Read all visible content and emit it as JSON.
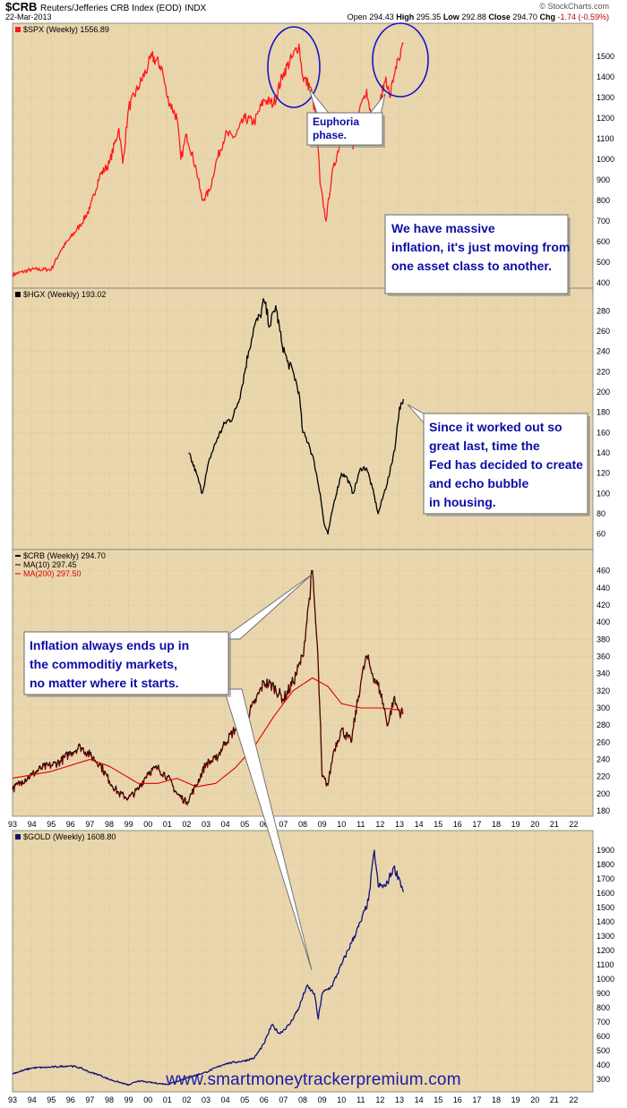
{
  "header": {
    "symbol": "$CRB",
    "index_name": "Reuters/Jefferies CRB Index (EOD)",
    "exchange": "INDX",
    "date": "22-Mar-2013",
    "open_label": "Open",
    "open": "294.43",
    "high_label": "High",
    "high": "295.35",
    "low_label": "Low",
    "low": "292.88",
    "close_label": "Close",
    "close": "294.70",
    "chg_label": "Chg",
    "chg": "-1.74 (-0.59%)",
    "logo": "© StockCharts.com"
  },
  "footer": {
    "url": "www.smartmoneytrackerpremium.com"
  },
  "chart_data": [
    {
      "type": "line",
      "legend": "$SPX (Weekly) 1556.89",
      "color": "#ff1a1a",
      "ylim": [
        400,
        1600
      ],
      "yticks": [
        "400",
        "500",
        "600",
        "700",
        "800",
        "900",
        "1000",
        "1100",
        "1200",
        "1300",
        "1400",
        "1500"
      ],
      "series": [
        {
          "name": "$SPX",
          "x": [
            1993.0,
            1994.0,
            1995.0,
            1995.5,
            1996.0,
            1996.5,
            1997.0,
            1997.5,
            1998.0,
            1998.5,
            1998.7,
            1999.0,
            1999.5,
            2000.0,
            2000.2,
            2000.7,
            2001.0,
            2001.5,
            2001.7,
            2002.0,
            2002.5,
            2002.8,
            2003.2,
            2003.5,
            2004.0,
            2004.5,
            2005.0,
            2005.5,
            2006.0,
            2006.5,
            2007.0,
            2007.5,
            2007.8,
            2008.0,
            2008.4,
            2008.7,
            2008.9,
            2009.2,
            2009.5,
            2010.0,
            2010.3,
            2010.6,
            2011.0,
            2011.3,
            2011.7,
            2012.0,
            2012.3,
            2012.5,
            2012.8,
            2013.0,
            2013.2
          ],
          "y": [
            440,
            465,
            465,
            560,
            620,
            680,
            760,
            920,
            980,
            1150,
            980,
            1250,
            1350,
            1450,
            1500,
            1450,
            1300,
            1200,
            1000,
            1120,
            950,
            800,
            850,
            980,
            1120,
            1110,
            1200,
            1180,
            1290,
            1270,
            1420,
            1500,
            1560,
            1400,
            1350,
            1200,
            880,
            700,
            920,
            1110,
            1200,
            1050,
            1270,
            1340,
            1130,
            1280,
            1400,
            1300,
            1450,
            1480,
            1560
          ]
        }
      ],
      "annotations": [
        "Euphoria phase.",
        "We have massive inflation, it's just moving from one asset class to another."
      ]
    },
    {
      "type": "line",
      "legend": "$HGX (Weekly) 193.02",
      "color": "#000000",
      "ylim": [
        50,
        290
      ],
      "yticks": [
        "60",
        "80",
        "100",
        "120",
        "140",
        "160",
        "180",
        "200",
        "220",
        "240",
        "260",
        "280"
      ],
      "series": [
        {
          "name": "$HGX",
          "x": [
            2002.1,
            2002.5,
            2002.8,
            2003.2,
            2003.6,
            2004.0,
            2004.4,
            2004.8,
            2005.2,
            2005.5,
            2005.8,
            2006.0,
            2006.3,
            2006.6,
            2006.9,
            2007.2,
            2007.5,
            2007.8,
            2008.0,
            2008.3,
            2008.6,
            2008.9,
            2009.1,
            2009.3,
            2009.6,
            2010.0,
            2010.3,
            2010.6,
            2011.0,
            2011.3,
            2011.6,
            2011.9,
            2012.2,
            2012.5,
            2012.8,
            2013.0,
            2013.2
          ],
          "y": [
            140,
            120,
            100,
            135,
            155,
            170,
            175,
            200,
            240,
            265,
            275,
            290,
            265,
            285,
            250,
            230,
            220,
            200,
            160,
            150,
            130,
            100,
            70,
            60,
            90,
            120,
            115,
            100,
            125,
            125,
            105,
            80,
            100,
            120,
            150,
            185,
            193
          ]
        }
      ],
      "annotations": [
        "Since it worked out so great last, time the Fed has decided to create and echo bubble in housing."
      ]
    },
    {
      "type": "line",
      "legend": "$CRB (Weekly) 294.70",
      "legend_ma10": "MA(10) 297.45",
      "legend_ma200": "MA(200) 297.50",
      "color": "#000000",
      "ma_color": "#dd0000",
      "ylim": [
        180,
        470
      ],
      "yticks": [
        "180",
        "200",
        "220",
        "240",
        "260",
        "280",
        "300",
        "320",
        "340",
        "360",
        "380",
        "400",
        "420",
        "440",
        "460"
      ],
      "xticks": [
        "93",
        "94",
        "95",
        "96",
        "97",
        "98",
        "99",
        "00",
        "01",
        "02",
        "03",
        "04",
        "05",
        "06",
        "07",
        "08",
        "09",
        "10",
        "11",
        "12",
        "13",
        "14",
        "15",
        "16",
        "17",
        "18",
        "19",
        "20",
        "21",
        "22"
      ],
      "series": [
        {
          "name": "$CRB",
          "x": [
            1993.0,
            1993.5,
            1994.0,
            1994.5,
            1995.0,
            1995.5,
            1996.0,
            1996.5,
            1997.0,
            1997.5,
            1998.0,
            1998.5,
            1999.0,
            1999.5,
            2000.0,
            2000.5,
            2001.0,
            2001.5,
            2002.0,
            2002.5,
            2003.0,
            2003.5,
            2004.0,
            2004.5,
            2005.0,
            2005.5,
            2006.0,
            2006.5,
            2007.0,
            2007.5,
            2008.0,
            2008.3,
            2008.5,
            2008.8,
            2009.0,
            2009.3,
            2009.6,
            2010.0,
            2010.5,
            2011.0,
            2011.3,
            2011.6,
            2012.0,
            2012.4,
            2012.7,
            2013.0,
            2013.2
          ],
          "y": [
            205,
            215,
            222,
            230,
            233,
            238,
            248,
            255,
            245,
            235,
            215,
            200,
            195,
            205,
            225,
            230,
            220,
            200,
            190,
            210,
            235,
            240,
            260,
            275,
            285,
            305,
            330,
            325,
            310,
            330,
            360,
            420,
            460,
            350,
            220,
            210,
            250,
            275,
            260,
            330,
            360,
            340,
            320,
            280,
            310,
            295,
            294
          ]
        },
        {
          "name": "MA(200)",
          "x": [
            1993.0,
            1995.0,
            1997.0,
            1998.0,
            1999.5,
            2000.5,
            2001.5,
            2002.5,
            2003.5,
            2004.5,
            2005.5,
            2006.5,
            2007.5,
            2008.5,
            2009.3,
            2010.0,
            2011.0,
            2012.0,
            2013.2
          ],
          "y": [
            218,
            226,
            240,
            232,
            212,
            212,
            218,
            208,
            212,
            230,
            255,
            290,
            320,
            335,
            325,
            305,
            300,
            300,
            297
          ]
        }
      ]
    },
    {
      "type": "line",
      "legend": "$GOLD (Weekly) 1608.80",
      "color": "#10107a",
      "ylim": [
        250,
        1950
      ],
      "yticks": [
        "300",
        "400",
        "500",
        "600",
        "700",
        "800",
        "900",
        "1000",
        "1100",
        "1200",
        "1300",
        "1400",
        "1500",
        "1600",
        "1700",
        "1800",
        "1900"
      ],
      "xticks": [
        "93",
        "94",
        "95",
        "96",
        "97",
        "98",
        "99",
        "00",
        "01",
        "02",
        "03",
        "04",
        "05",
        "06",
        "07",
        "08",
        "09",
        "10",
        "11",
        "12",
        "13",
        "14",
        "15",
        "16",
        "17",
        "18",
        "19",
        "20",
        "21",
        "22"
      ],
      "series": [
        {
          "name": "$GOLD",
          "x": [
            1993.0,
            1994.0,
            1995.0,
            1996.0,
            1996.5,
            1997.0,
            1997.5,
            1998.0,
            1999.0,
            1999.5,
            2000.0,
            2001.0,
            2002.0,
            2003.0,
            2004.0,
            2005.0,
            2005.5,
            2006.0,
            2006.4,
            2006.8,
            2007.3,
            2007.8,
            2008.2,
            2008.6,
            2008.8,
            2009.0,
            2009.5,
            2010.0,
            2010.5,
            2011.0,
            2011.4,
            2011.7,
            2011.9,
            2012.3,
            2012.7,
            2013.0,
            2013.2
          ],
          "y": [
            340,
            380,
            385,
            395,
            380,
            350,
            330,
            300,
            260,
            290,
            280,
            265,
            310,
            350,
            410,
            430,
            450,
            550,
            680,
            620,
            680,
            800,
            950,
            900,
            720,
            900,
            950,
            1100,
            1250,
            1400,
            1550,
            1900,
            1650,
            1650,
            1780,
            1700,
            1608
          ]
        }
      ]
    }
  ]
}
